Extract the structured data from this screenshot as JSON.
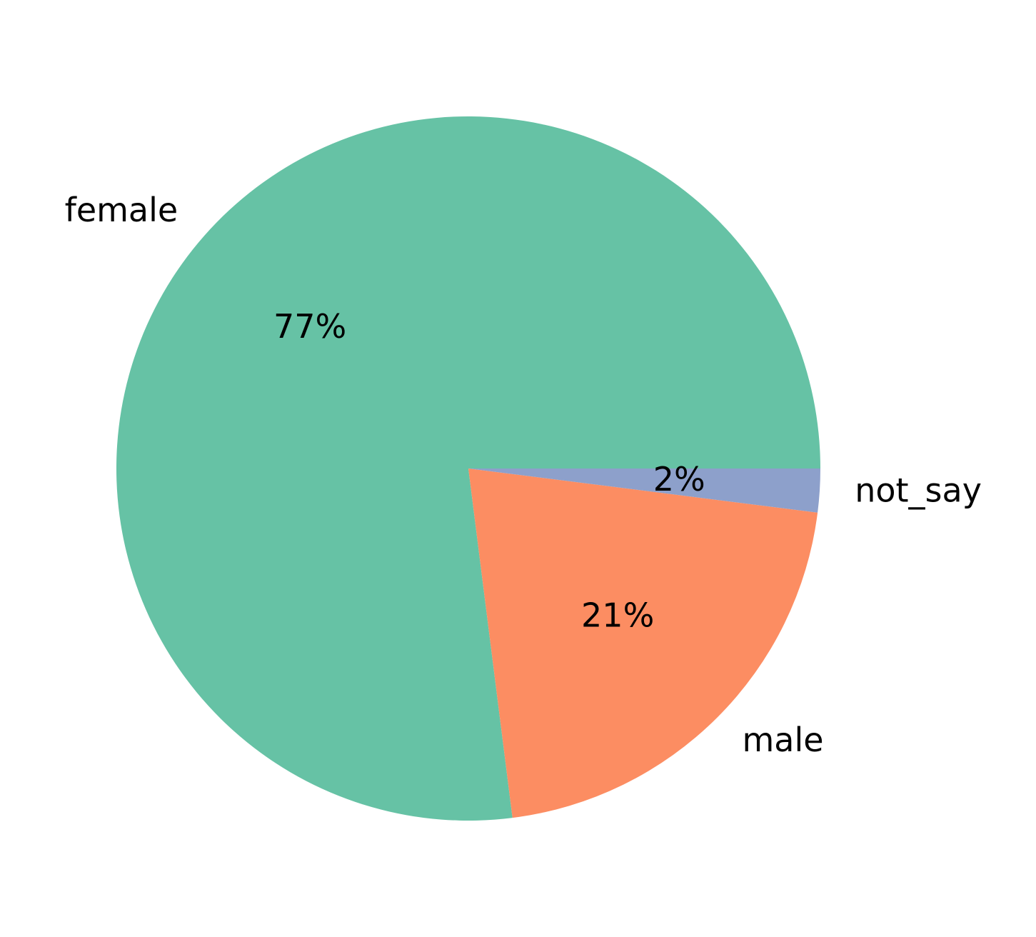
{
  "chart_data": {
    "type": "pie",
    "categories": [
      "female",
      "male",
      "not_say"
    ],
    "values": [
      77,
      21,
      2
    ],
    "value_labels": [
      "77%",
      "21%",
      "2%"
    ],
    "colors": [
      "#66c2a5",
      "#fc8d62",
      "#8da0cb"
    ]
  }
}
